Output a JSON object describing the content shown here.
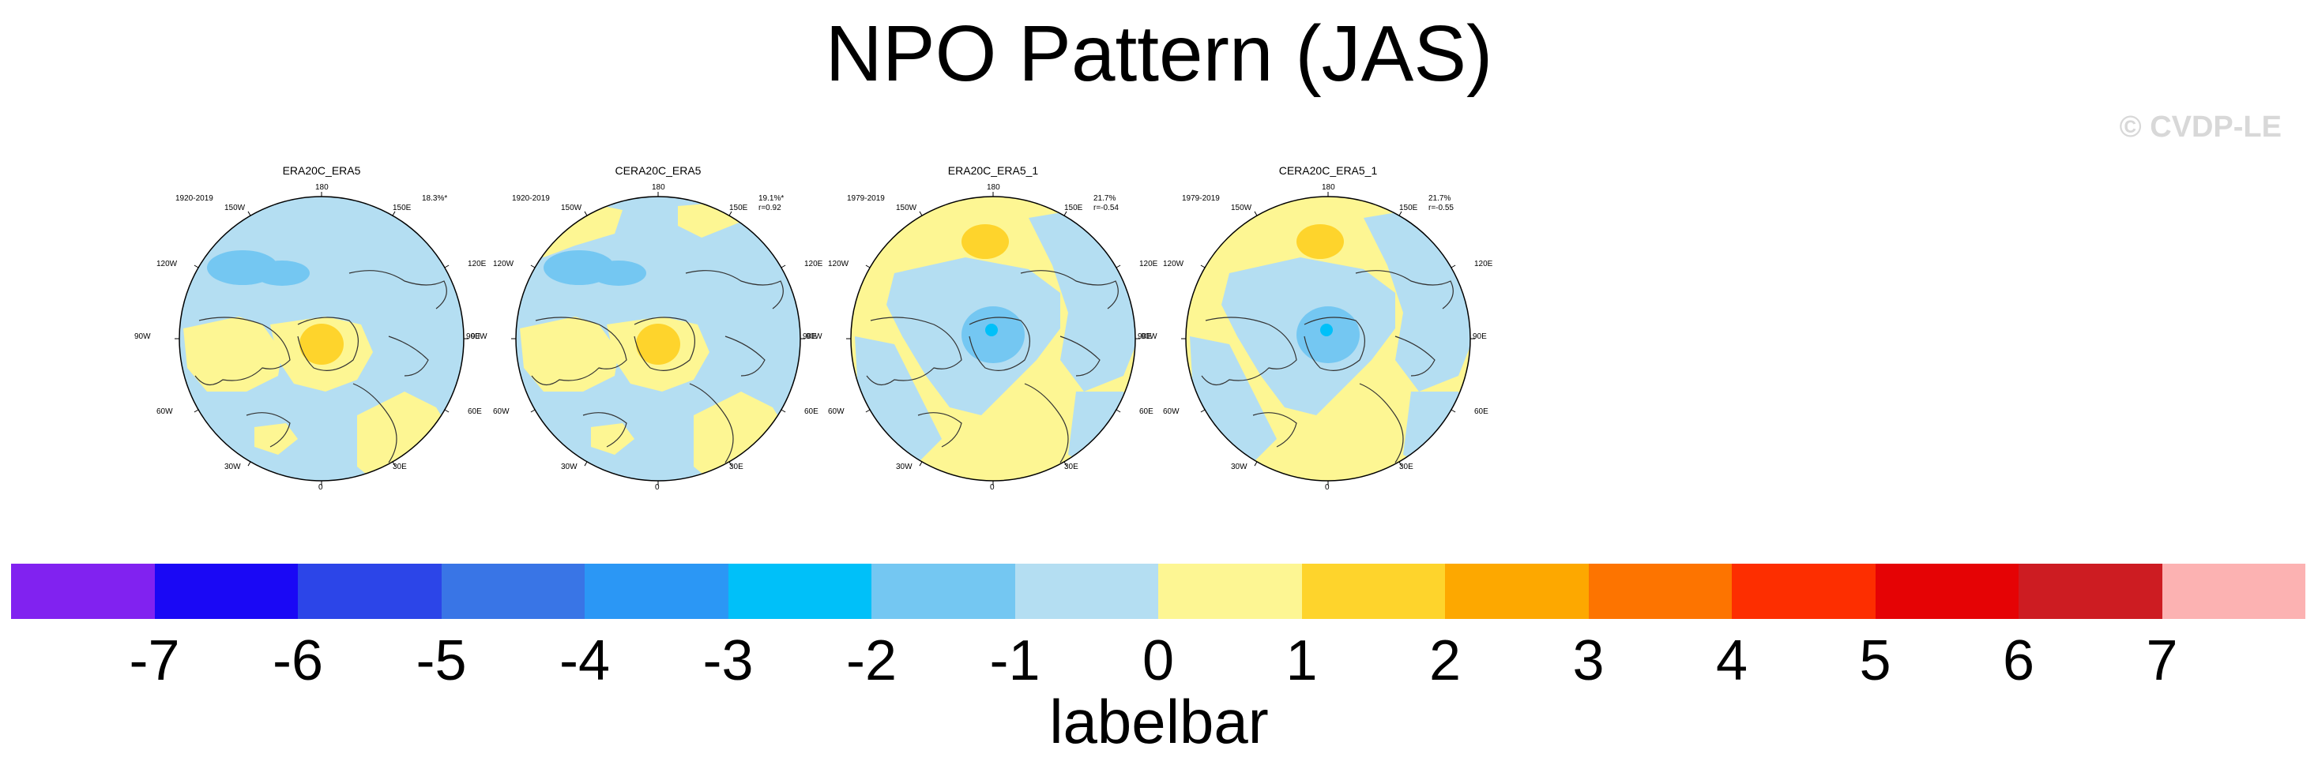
{
  "title": "NPO Pattern (JAS)",
  "copyright": "© CVDP-LE",
  "panels": [
    {
      "title": "ERA20C_ERA5",
      "period": "1920-2019",
      "stat1": "18.3%*",
      "stat2": "",
      "variant": "a"
    },
    {
      "title": "CERA20C_ERA5",
      "period": "1920-2019",
      "stat1": "19.1%*",
      "stat2": "r=0.92",
      "variant": "a"
    },
    {
      "title": "ERA20C_ERA5_1",
      "period": "1979-2019",
      "stat1": "21.7%",
      "stat2": "r=-0.54",
      "variant": "b"
    },
    {
      "title": "CERA20C_ERA5_1",
      "period": "1979-2019",
      "stat1": "21.7%",
      "stat2": "r=-0.55",
      "variant": "b"
    }
  ],
  "lon_labels": {
    "l180": "180",
    "l150w": "150W",
    "l150e": "150E",
    "l120w": "120W",
    "l120e": "120E",
    "l90w": "90W",
    "l90e": "90E",
    "l60w": "60W",
    "l60e": "60E",
    "l30w": "30W",
    "l30e": "30E",
    "l0": "0"
  },
  "colorbar": {
    "title": "labelbar",
    "colors": [
      "#8122f0",
      "#1a08f5",
      "#2c45e8",
      "#3975e6",
      "#2b97f5",
      "#00c0f9",
      "#74c7f2",
      "#b4def2",
      "#fdf693",
      "#fed42c",
      "#fda800",
      "#fd7400",
      "#fd2e00",
      "#e50305",
      "#cd1c22",
      "#fcb2b2"
    ],
    "ticks": [
      "-7",
      "-6",
      "-5",
      "-4",
      "-3",
      "-2",
      "-1",
      "0",
      "1",
      "2",
      "3",
      "4",
      "5",
      "6",
      "7"
    ]
  }
}
